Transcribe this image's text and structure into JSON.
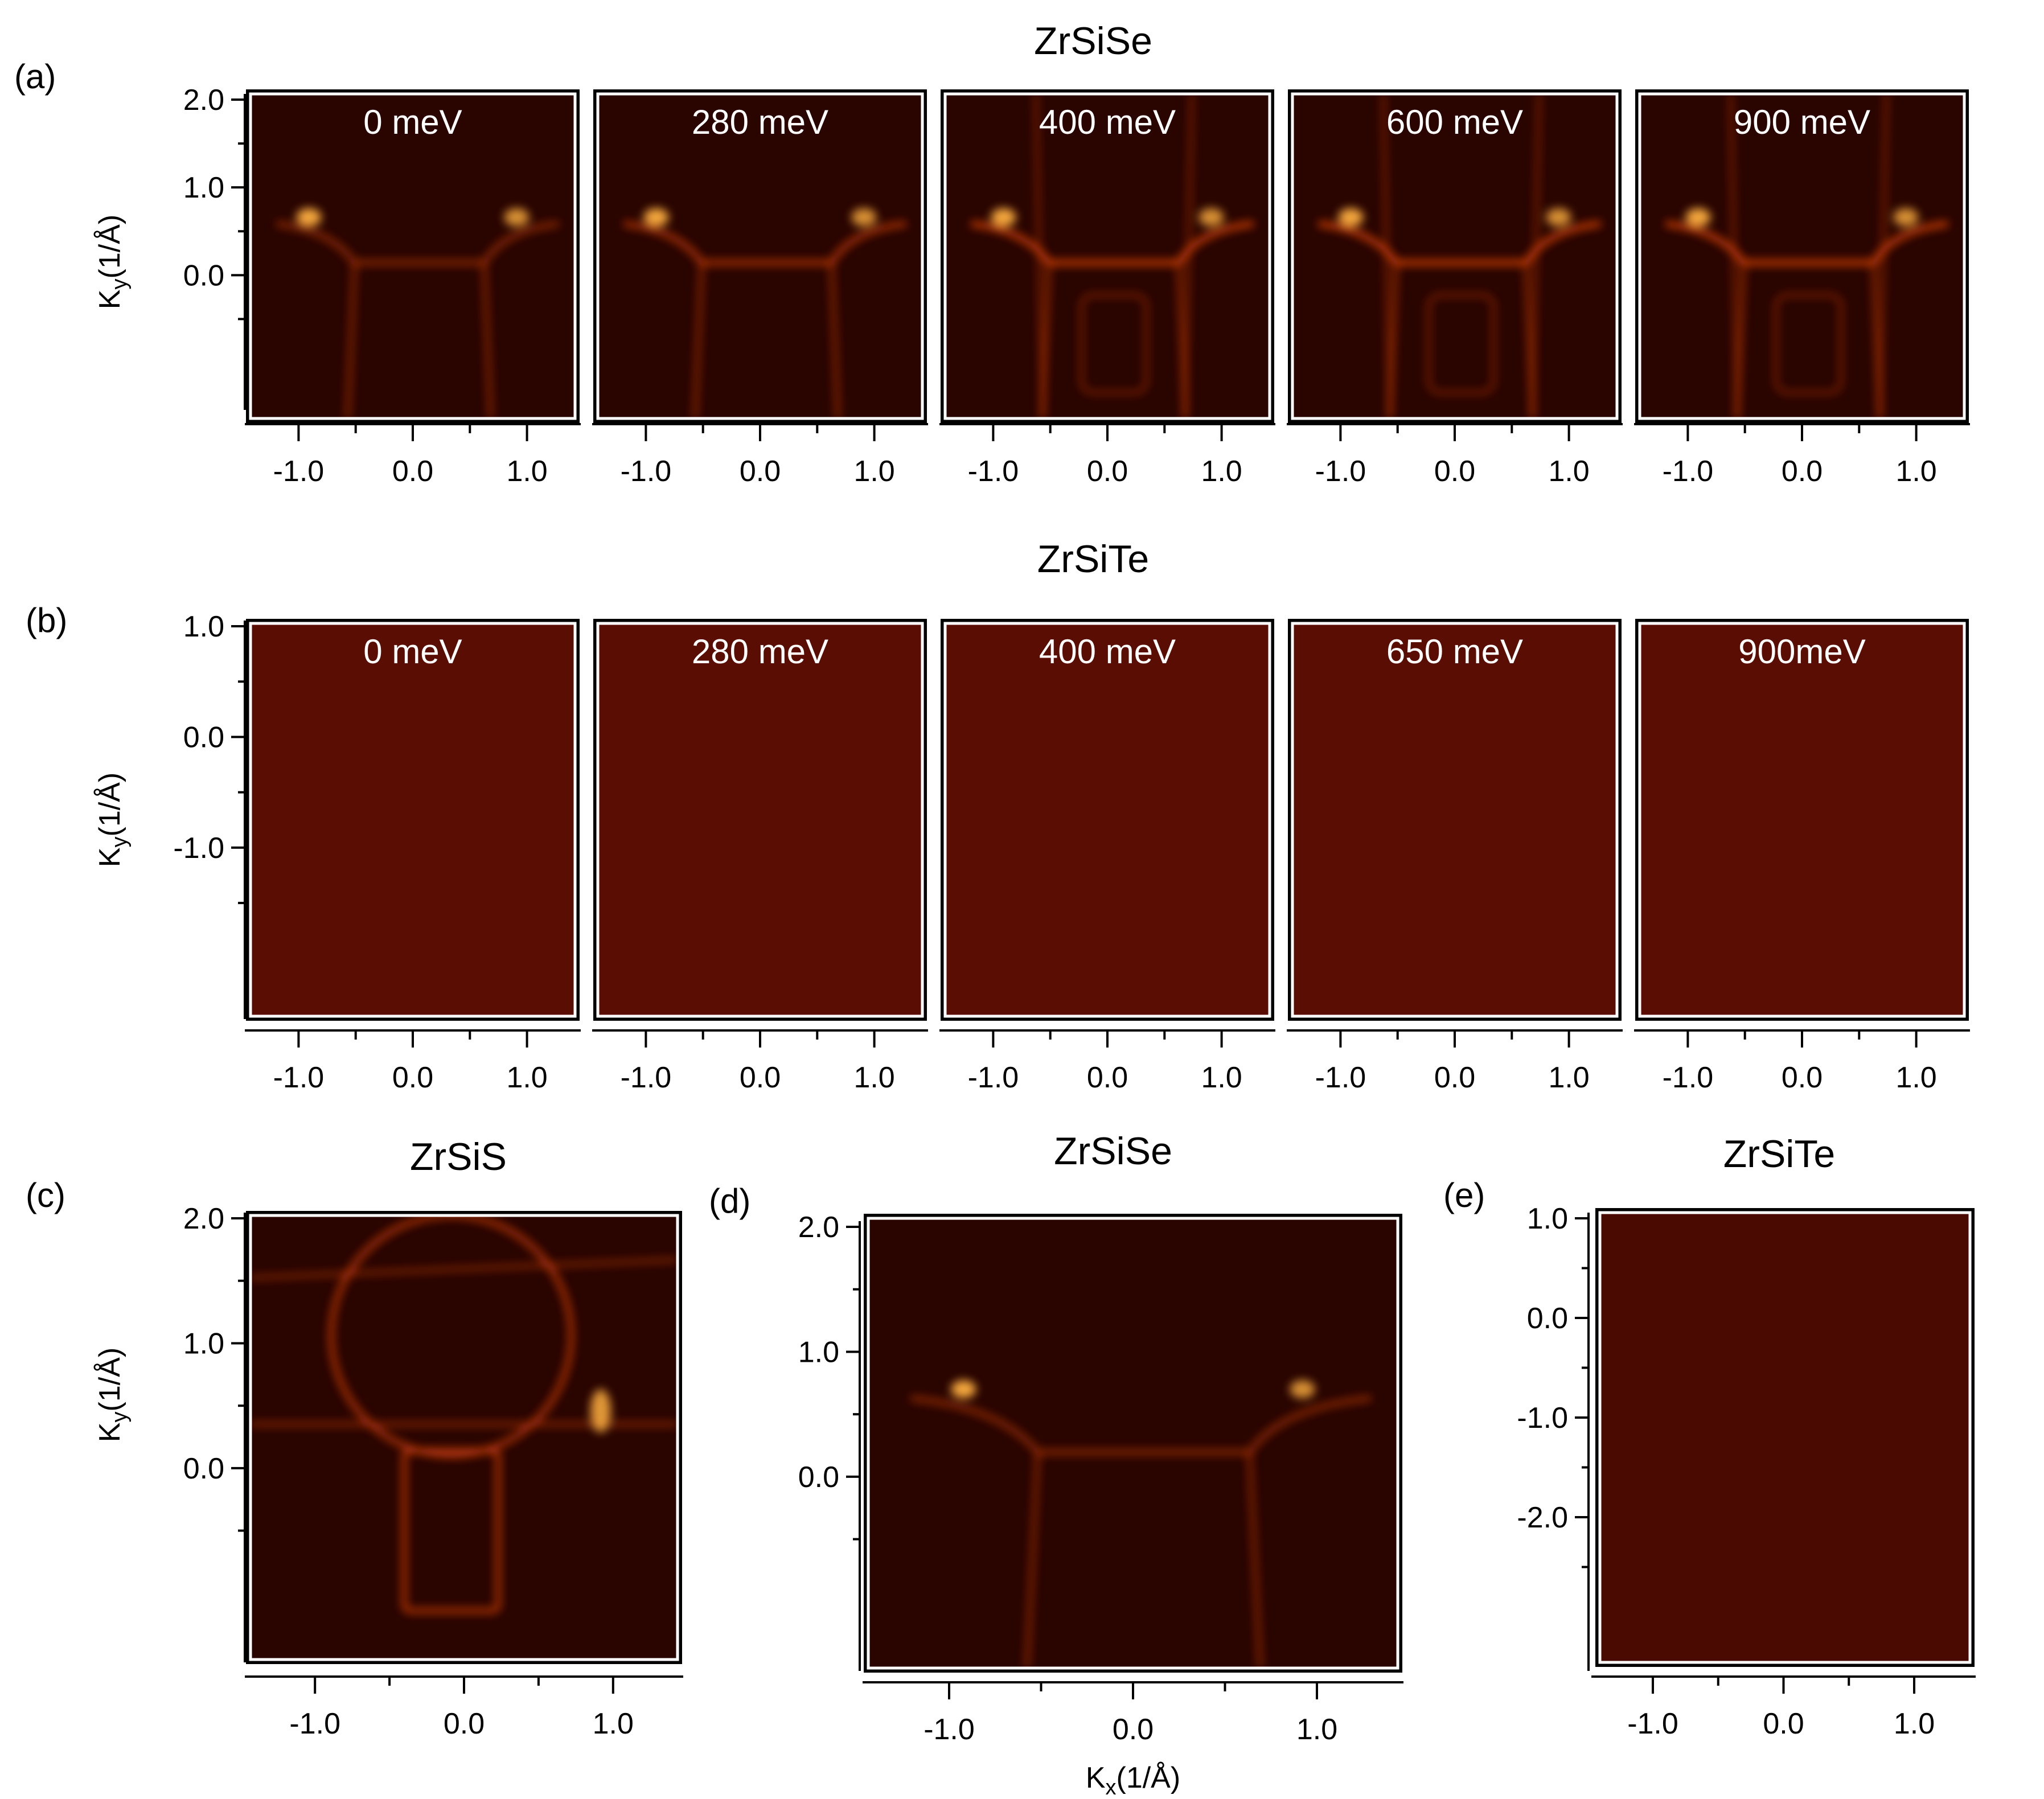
{
  "chart_data": [
    {
      "type": "heatmap",
      "panel_label": "(a)",
      "title": "ZrSiSe",
      "ylabel": "Ky(1/Å)",
      "ylim": [
        -0.6,
        2.0
      ],
      "yticks": [
        "2.0",
        "1.0",
        "0.0"
      ],
      "subplots": [
        {
          "label": "0 meV",
          "xticks": [
            "-1.0",
            "0.0",
            "1.0"
          ]
        },
        {
          "label": "280 meV",
          "xticks": [
            "-1.0",
            "0.0",
            "1.0"
          ]
        },
        {
          "label": "400 meV",
          "xticks": [
            "-1.0",
            "0.0",
            "1.0"
          ]
        },
        {
          "label": "600 meV",
          "xticks": [
            "-1.0",
            "0.0",
            "1.0"
          ]
        },
        {
          "label": "900 meV",
          "xticks": [
            "-1.0",
            "0.0",
            "1.0"
          ]
        }
      ]
    },
    {
      "type": "heatmap",
      "panel_label": "(b)",
      "title": "ZrSiTe",
      "ylabel": "Ky(1/Å)",
      "ylim": [
        -1.5,
        1.5
      ],
      "yticks": [
        "1.0",
        "0.0",
        "-1.0"
      ],
      "subplots": [
        {
          "label": "0 meV",
          "xticks": [
            "-1.0",
            "0.0",
            "1.0"
          ]
        },
        {
          "label": "280 meV",
          "xticks": [
            "-1.0",
            "0.0",
            "1.0"
          ]
        },
        {
          "label": "400 meV",
          "xticks": [
            "-1.0",
            "0.0",
            "1.0"
          ]
        },
        {
          "label": "650 meV",
          "xticks": [
            "-1.0",
            "0.0",
            "1.0"
          ]
        },
        {
          "label": "900meV",
          "xticks": [
            "-1.0",
            "0.0",
            "1.0"
          ]
        }
      ]
    },
    {
      "type": "heatmap",
      "panel_label": "(c)",
      "title": "ZrSiS",
      "ylabel": "Ky(1/Å)",
      "yticks": [
        "2.0",
        "1.0",
        "0.0"
      ],
      "xticks": [
        "-1.0",
        "0.0",
        "1.0"
      ]
    },
    {
      "type": "heatmap",
      "panel_label": "(d)",
      "title": "ZrSiSe",
      "xlabel": "Kx(1/Å)",
      "yticks": [
        "2.0",
        "1.0",
        "0.0"
      ],
      "xticks": [
        "-1.0",
        "0.0",
        "1.0"
      ]
    },
    {
      "type": "heatmap",
      "panel_label": "(e)",
      "title": "ZrSiTe",
      "yticks": [
        "1.0",
        "0.0",
        "-1.0",
        "-2.0"
      ],
      "xticks": [
        "-1.0",
        "0.0",
        "1.0"
      ]
    }
  ],
  "colors": {
    "map_background": "#2a0500",
    "map_background_te": "#5a0d02",
    "band": "#d8420e",
    "hot": "#ffb040",
    "frame": "#ffffff"
  }
}
